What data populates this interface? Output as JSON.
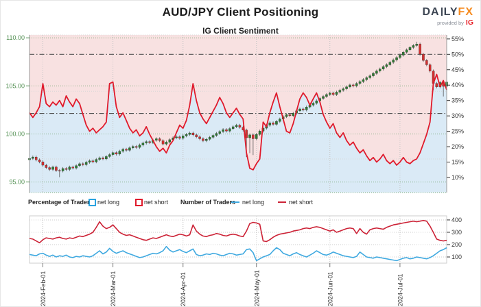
{
  "page": {
    "title": "AUD/JPY Client Positioning"
  },
  "logo": {
    "part1": "DA",
    "part2": "LY",
    "fx": "FX",
    "provided_by": "provided by",
    "ig": "IG"
  },
  "legend": {
    "groups": [
      {
        "label": "Percentage of Traders",
        "items": [
          {
            "label": "net long",
            "color": "#29a3e0"
          },
          {
            "label": "net short",
            "color": "#e01a2b"
          }
        ]
      },
      {
        "label": "Number of Traders",
        "items": [
          {
            "label": "net long",
            "color": "#3fa9e0"
          },
          {
            "label": "net short",
            "color": "#cc2236"
          }
        ]
      }
    ]
  },
  "colors": {
    "accent_red": "#e01a2b",
    "pink_bg": "#f8e1e1",
    "blue_bg": "#daeaf6",
    "candle_up": "#2e7d32",
    "candle_down": "#d32f2f",
    "wick": "#555555",
    "axis_green": "#4e8d4e",
    "axis_dark": "#333333",
    "grid_green": "#7fae7f",
    "grid_gray": "#c4c4c4",
    "grid_faint": "#d8d8d8",
    "dashdot": "#555555",
    "bottom_red": "#cc2236",
    "bottom_blue": "#3fa9e0",
    "logo_dark": "#3d4653",
    "logo_orange": "#f68b1f",
    "ig_red": "#e8262d",
    "panel_border": "#cccccc"
  },
  "chart_data": [
    {
      "type": "candlestick+line",
      "title": "IG Client Sentiment",
      "legend_position": "below",
      "grid": true,
      "price_axis": {
        "side": "left",
        "ticks": [
          110.0,
          105.0,
          100.0,
          95.0
        ],
        "tick_labels": [
          "110.00",
          "105.00",
          "100.00",
          "95.00"
        ],
        "range": [
          95,
          110
        ]
      },
      "pct_axis": {
        "side": "right",
        "ticks": [
          55,
          50,
          45,
          40,
          35,
          30,
          25,
          20,
          15,
          10
        ],
        "tick_labels": [
          "55%",
          "50%",
          "45%",
          "40%",
          "35%",
          "30%",
          "25%",
          "20%",
          "15%",
          "10%"
        ],
        "range": [
          10,
          55
        ]
      },
      "price_edge": [
        93.9,
        110.3
      ],
      "pct_edge": [
        5.1,
        56.3
      ],
      "reference_lines_pct": [
        50,
        30.8
      ],
      "minor_lines_pct": [
        38,
        16
      ],
      "x_ticks": {
        "labels": [
          "2024-Feb-01",
          "2024-Mar-01",
          "2024-Apr-01",
          "2024-May-01",
          "2024-Jun-01",
          "2024-Jul-01"
        ],
        "day_index": [
          4,
          25,
          46,
          68,
          90,
          111
        ]
      },
      "candles": {
        "first_open": 97.3,
        "closes": [
          97.45,
          97.6,
          97.3,
          97.1,
          96.75,
          96.5,
          96.3,
          96.55,
          96.2,
          96.15,
          96.4,
          96.3,
          96.55,
          96.45,
          96.7,
          96.9,
          96.8,
          97.05,
          97.2,
          97.1,
          97.35,
          97.5,
          97.4,
          97.65,
          97.85,
          98.05,
          97.9,
          98.2,
          98.4,
          98.3,
          98.55,
          98.7,
          98.6,
          98.85,
          99.05,
          99.2,
          99.1,
          99.35,
          99.5,
          99.3,
          98.95,
          99.15,
          99.4,
          99.6,
          99.7,
          99.55,
          99.8,
          99.95,
          100.1,
          99.9,
          99.7,
          99.5,
          99.3,
          99.45,
          99.65,
          99.85,
          100.05,
          100.25,
          100.45,
          100.3,
          100.55,
          100.75,
          100.9,
          100.7,
          100.4,
          99.6,
          99.9,
          99.5,
          99.95,
          100.3,
          100.6,
          100.9,
          101.15,
          101.0,
          101.3,
          101.55,
          101.8,
          102.0,
          101.9,
          102.15,
          102.4,
          102.6,
          102.5,
          102.8,
          103.0,
          103.2,
          103.45,
          103.7,
          103.9,
          104.1,
          104.25,
          104.1,
          104.35,
          104.55,
          104.7,
          104.9,
          105.1,
          105.0,
          105.25,
          105.45,
          105.65,
          105.85,
          106.05,
          106.3,
          106.55,
          106.75,
          107.0,
          107.2,
          107.45,
          107.7,
          107.95,
          108.2,
          108.5,
          108.75,
          109.0,
          109.2,
          109.35,
          108.3,
          107.65,
          107.2,
          106.55,
          105.25,
          104.9,
          105.35,
          104.95,
          105.4
        ],
        "wick_overrides": {
          "9": [
            null,
            95.5
          ],
          "65": [
            null,
            97.6
          ],
          "66": [
            null,
            98.0
          ],
          "67": [
            null,
            97.8
          ],
          "116": [
            109.6,
            null
          ],
          "121": [
            null,
            104.55
          ],
          "124": [
            null,
            103.9
          ]
        }
      },
      "net_short_pct": [
        31,
        29.5,
        31,
        33,
        40.5,
        34,
        33,
        34.5,
        33.5,
        35,
        33,
        36.5,
        34.5,
        33,
        35.5,
        34,
        30.5,
        27,
        25,
        26,
        24.5,
        25.5,
        26.5,
        28,
        40.5,
        41,
        33,
        29.5,
        31,
        28.5,
        26,
        24.5,
        25.5,
        23.5,
        24.5,
        26.5,
        24,
        22,
        20,
        18.5,
        19.5,
        18,
        20.5,
        22,
        24.5,
        27,
        26,
        28.5,
        33.5,
        40.5,
        35,
        31,
        29,
        27.5,
        29.5,
        31.5,
        33.5,
        36,
        34,
        31,
        29.5,
        31,
        32.5,
        30.5,
        29,
        18,
        13,
        12.5,
        14.5,
        16,
        28,
        26.5,
        31,
        34.5,
        37.5,
        33,
        29,
        25,
        24.5,
        27.5,
        31.5,
        35.5,
        37.5,
        36,
        33.5,
        35.5,
        37.5,
        34.5,
        30.5,
        28,
        26,
        27.5,
        24.5,
        23,
        24.5,
        22,
        20.5,
        21.5,
        19.5,
        18,
        19,
        17,
        15.5,
        16.5,
        15,
        16,
        17.5,
        15.5,
        14.5,
        15.5,
        14,
        15,
        16.5,
        15,
        14.5,
        15.5,
        16,
        18,
        21,
        24,
        28,
        40.5,
        43.5,
        39.5,
        41.5,
        38.5
      ]
    },
    {
      "type": "line",
      "y_axis": {
        "side": "right",
        "ticks": [
          400,
          300,
          200,
          100
        ],
        "range": [
          50,
          433
        ]
      },
      "y_edge": [
        50,
        433
      ],
      "series": [
        {
          "name": "net long",
          "color": "#3fa9e0",
          "values": [
            120,
            115,
            110,
            125,
            130,
            115,
            105,
            115,
            100,
            110,
            105,
            115,
            100,
            95,
            105,
            100,
            110,
            105,
            100,
            110,
            130,
            150,
            125,
            140,
            170,
            145,
            130,
            140,
            150,
            135,
            125,
            115,
            105,
            95,
            100,
            110,
            120,
            130,
            125,
            135,
            150,
            185,
            155,
            140,
            150,
            160,
            145,
            135,
            150,
            165,
            120,
            110,
            115,
            125,
            120,
            130,
            125,
            115,
            110,
            120,
            130,
            125,
            115,
            120,
            125,
            160,
            165,
            135,
            70,
            85,
            100,
            110,
            120,
            150,
            175,
            160,
            130,
            120,
            110,
            125,
            135,
            120,
            110,
            100,
            115,
            130,
            150,
            135,
            120,
            115,
            125,
            140,
            130,
            120,
            110,
            105,
            100,
            95,
            105,
            140,
            120,
            100,
            95,
            90,
            100,
            95,
            90,
            85,
            80,
            75,
            70,
            80,
            90,
            95,
            85,
            90,
            100,
            95,
            90,
            85,
            95,
            110,
            130,
            150,
            160,
            175
          ]
        },
        {
          "name": "net short",
          "color": "#cc2236",
          "values": [
            250,
            245,
            230,
            215,
            240,
            255,
            250,
            245,
            255,
            260,
            250,
            245,
            255,
            250,
            260,
            270,
            265,
            275,
            285,
            300,
            340,
            385,
            350,
            330,
            340,
            360,
            330,
            300,
            285,
            275,
            280,
            270,
            260,
            250,
            240,
            235,
            245,
            255,
            250,
            260,
            270,
            280,
            270,
            265,
            275,
            285,
            280,
            270,
            280,
            360,
            310,
            285,
            270,
            265,
            275,
            280,
            290,
            285,
            275,
            270,
            280,
            285,
            280,
            270,
            265,
            310,
            370,
            380,
            375,
            365,
            230,
            225,
            240,
            260,
            275,
            285,
            290,
            295,
            300,
            310,
            315,
            320,
            330,
            335,
            330,
            340,
            345,
            340,
            330,
            320,
            310,
            320,
            300,
            310,
            320,
            330,
            335,
            330,
            290,
            330,
            300,
            285,
            320,
            330,
            335,
            330,
            325,
            340,
            350,
            360,
            365,
            370,
            375,
            380,
            385,
            390,
            385,
            390,
            395,
            390,
            350,
            300,
            245,
            235,
            230,
            235
          ]
        }
      ]
    }
  ]
}
